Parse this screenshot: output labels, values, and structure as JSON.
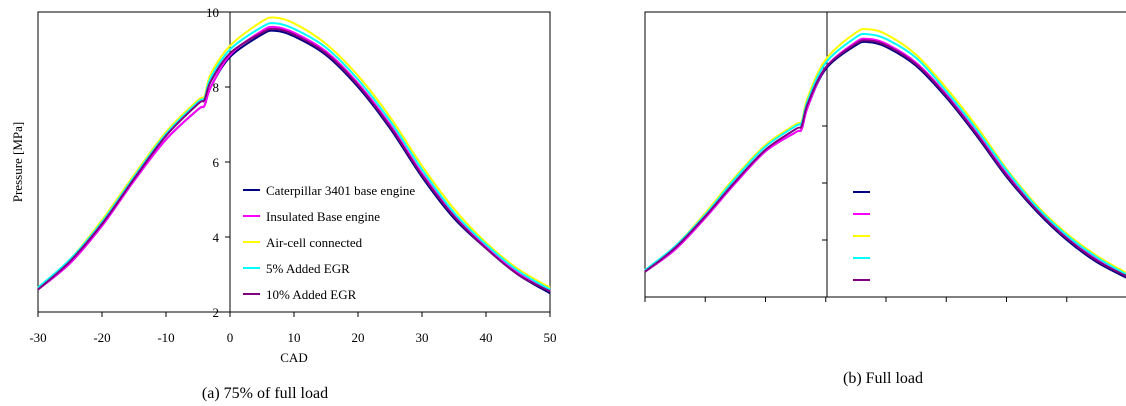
{
  "chart_data": [
    {
      "id": "a",
      "type": "line",
      "caption": "(a) 75% of full load",
      "xlabel": "CAD",
      "ylabel": "Pressure [MPa]",
      "xlim": [
        -30,
        50
      ],
      "ylim": [
        2,
        10
      ],
      "xticks": [
        -30,
        -20,
        -10,
        0,
        10,
        20,
        30,
        40,
        50
      ],
      "yticks": [
        2,
        4,
        6,
        8,
        10
      ],
      "legend_position": "lower-center",
      "series": [
        {
          "name": "Caterpillar 3401 base engine",
          "color": "#000080",
          "x": [
            -30,
            -25,
            -20,
            -15,
            -10,
            -5,
            -4,
            -3,
            0,
            5,
            7,
            10,
            15,
            20,
            25,
            30,
            35,
            40,
            45,
            50
          ],
          "y": [
            2.6,
            3.3,
            4.3,
            5.5,
            6.6,
            7.4,
            7.5,
            8.0,
            8.8,
            9.4,
            9.5,
            9.35,
            8.85,
            8.0,
            6.9,
            5.6,
            4.5,
            3.7,
            3.0,
            2.5
          ]
        },
        {
          "name": "Insulated Base engine",
          "color": "#FF00FF",
          "x": [
            -30,
            -25,
            -20,
            -15,
            -10,
            -5,
            -4,
            -3,
            0,
            5,
            7,
            10,
            15,
            20,
            25,
            30,
            35,
            40,
            45,
            50
          ],
          "y": [
            2.6,
            3.3,
            4.3,
            5.5,
            6.6,
            7.4,
            7.5,
            8.0,
            8.85,
            9.5,
            9.6,
            9.45,
            8.95,
            8.1,
            7.0,
            5.7,
            4.6,
            3.75,
            3.05,
            2.55
          ]
        },
        {
          "name": "Air-cell connected",
          "color": "#FFFF00",
          "x": [
            -30,
            -25,
            -20,
            -15,
            -10,
            -5,
            -4,
            -3,
            0,
            5,
            7,
            10,
            15,
            20,
            25,
            30,
            35,
            40,
            45,
            50
          ],
          "y": [
            2.65,
            3.4,
            4.45,
            5.65,
            6.8,
            7.65,
            7.75,
            8.35,
            9.1,
            9.75,
            9.85,
            9.7,
            9.15,
            8.3,
            7.2,
            5.9,
            4.75,
            3.85,
            3.15,
            2.65
          ]
        },
        {
          "name": "5% Added EGR",
          "color": "#00FFFF",
          "x": [
            -30,
            -25,
            -20,
            -15,
            -10,
            -5,
            -4,
            -3,
            0,
            5,
            7,
            10,
            15,
            20,
            25,
            30,
            35,
            40,
            45,
            50
          ],
          "y": [
            2.65,
            3.4,
            4.4,
            5.6,
            6.75,
            7.6,
            7.7,
            8.25,
            9.0,
            9.6,
            9.7,
            9.55,
            9.05,
            8.2,
            7.1,
            5.8,
            4.65,
            3.8,
            3.1,
            2.6
          ]
        },
        {
          "name": "10% Added EGR",
          "color": "#800080",
          "x": [
            -30,
            -25,
            -20,
            -15,
            -10,
            -5,
            -4,
            -3,
            0,
            5,
            7,
            10,
            15,
            20,
            25,
            30,
            35,
            40,
            45,
            50
          ],
          "y": [
            2.6,
            3.35,
            4.35,
            5.55,
            6.7,
            7.55,
            7.65,
            8.15,
            8.9,
            9.45,
            9.55,
            9.4,
            8.9,
            8.05,
            6.95,
            5.65,
            4.55,
            3.7,
            3.0,
            2.55
          ]
        }
      ]
    },
    {
      "id": "b",
      "type": "line",
      "caption": "(b) Full load",
      "xlabel": "",
      "ylabel": "",
      "legend_position": "lower-center",
      "series": [
        {
          "color": "#000080",
          "x": [
            -30,
            -25,
            -20,
            -15,
            -10,
            -5,
            -4,
            -3,
            0,
            5,
            7,
            10,
            15,
            20,
            25,
            30,
            35,
            40,
            45,
            50
          ],
          "y": [
            2.8,
            3.5,
            4.5,
            5.6,
            6.6,
            7.2,
            7.3,
            8.0,
            9.2,
            9.95,
            10.05,
            9.9,
            9.3,
            8.3,
            7.1,
            5.8,
            4.7,
            3.8,
            3.1,
            2.6
          ]
        },
        {
          "color": "#FF00FF",
          "x": [
            -30,
            -25,
            -20,
            -15,
            -10,
            -5,
            -4,
            -3,
            0,
            5,
            7,
            10,
            15,
            20,
            25,
            30,
            35,
            40,
            45,
            50
          ],
          "y": [
            2.8,
            3.5,
            4.5,
            5.6,
            6.6,
            7.2,
            7.3,
            8.0,
            9.25,
            10.05,
            10.15,
            10.0,
            9.4,
            8.4,
            7.2,
            5.9,
            4.8,
            3.9,
            3.2,
            2.7
          ]
        },
        {
          "color": "#FFFF00",
          "x": [
            -30,
            -25,
            -20,
            -15,
            -10,
            -5,
            -4,
            -3,
            0,
            5,
            7,
            10,
            15,
            20,
            25,
            30,
            35,
            40,
            45,
            50
          ],
          "y": [
            2.85,
            3.6,
            4.65,
            5.8,
            6.8,
            7.45,
            7.55,
            8.3,
            9.5,
            10.35,
            10.45,
            10.3,
            9.65,
            8.6,
            7.4,
            6.05,
            4.9,
            4.0,
            3.3,
            2.75
          ]
        },
        {
          "color": "#00FFFF",
          "x": [
            -30,
            -25,
            -20,
            -15,
            -10,
            -5,
            -4,
            -3,
            0,
            5,
            7,
            10,
            15,
            20,
            25,
            30,
            35,
            40,
            45,
            50
          ],
          "y": [
            2.85,
            3.6,
            4.6,
            5.75,
            6.75,
            7.4,
            7.5,
            8.2,
            9.4,
            10.2,
            10.3,
            10.15,
            9.55,
            8.5,
            7.3,
            6.0,
            4.85,
            3.95,
            3.25,
            2.7
          ]
        },
        {
          "color": "#800080",
          "x": [
            -30,
            -25,
            -20,
            -15,
            -10,
            -5,
            -4,
            -3,
            0,
            5,
            7,
            10,
            15,
            20,
            25,
            30,
            35,
            40,
            45,
            50
          ],
          "y": [
            2.8,
            3.55,
            4.55,
            5.65,
            6.65,
            7.3,
            7.4,
            8.1,
            9.25,
            10.0,
            10.1,
            9.95,
            9.35,
            8.35,
            7.15,
            5.85,
            4.75,
            3.85,
            3.15,
            2.65
          ]
        }
      ]
    }
  ]
}
